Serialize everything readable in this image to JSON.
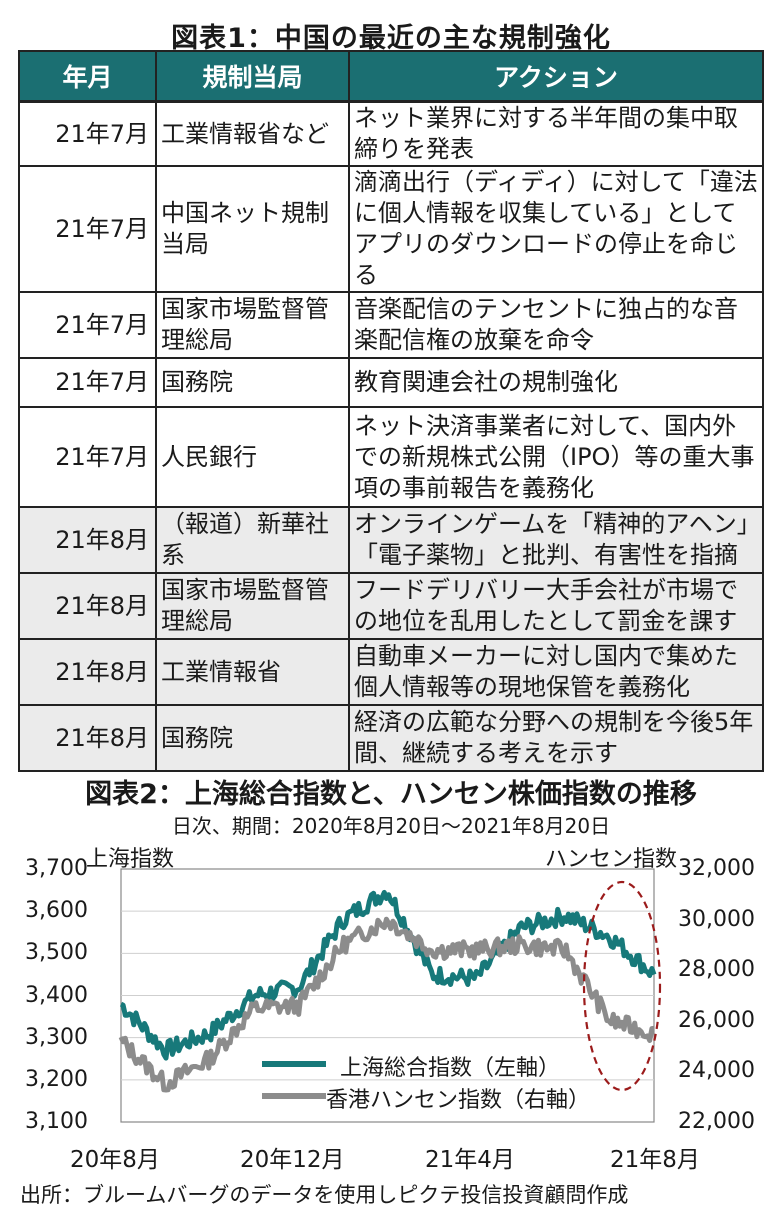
{
  "table": {
    "title": "図表1：中国の最近の主な規制強化",
    "headers": [
      "年月",
      "規制当局",
      "アクション"
    ],
    "rows": [
      {
        "date": "21年7月",
        "authority": "工業情報省など",
        "action": "ネット業界に対する半年間の集中取締りを発表"
      },
      {
        "date": "21年7月",
        "authority": "中国ネット規制当局",
        "action": "滴滴出行（ディディ）に対して「違法に個人情報を収集している」としてアプリのダウンロードの停止を命じる"
      },
      {
        "date": "21年7月",
        "authority": "国家市場監督管理総局",
        "action": "音楽配信のテンセントに独占的な音楽配信権の放棄を命令"
      },
      {
        "date": "21年7月",
        "authority": "国務院",
        "action": "教育関連会社の規制強化"
      },
      {
        "date": "21年7月",
        "authority": "人民銀行",
        "action": "ネット決済事業者に対して、国内外での新規株式公開（IPO）等の重大事項の事前報告を義務化"
      },
      {
        "date": "21年8月",
        "authority": "（報道）新華社系",
        "action": "オンラインゲームを「精神的アヘン」「電子薬物」と批判、有害性を指摘"
      },
      {
        "date": "21年8月",
        "authority": "国家市場監督管理総局",
        "action": "フードデリバリー大手会社が市場での地位を乱用したとして罰金を課す"
      },
      {
        "date": "21年8月",
        "authority": "工業情報省",
        "action": "自動車メーカーに対し国内で集めた個人情報等の現地保管を義務化"
      },
      {
        "date": "21年8月",
        "authority": "国務院",
        "action": "経済の広範な分野への規制を今後5年間、継続する考えを示す"
      }
    ]
  },
  "chart_section": {
    "title": "図表2：上海総合指数と、ハンセン株価指数の推移",
    "subtitle": "日次、期間：2020年8月20日～2021年8月20日",
    "source": "出所：ブルームバーグのデータを使用しピクテ投信投資顧問作成"
  },
  "chart_data": {
    "type": "line",
    "left_axis": {
      "label": "上海指数",
      "range": [
        3100,
        3700
      ],
      "ticks": [
        "3,700",
        "3,600",
        "3,500",
        "3,400",
        "3,300",
        "3,200",
        "3,100"
      ]
    },
    "right_axis": {
      "label": "ハンセン指数",
      "range": [
        22000,
        32000
      ],
      "ticks": [
        "32,000",
        "30,000",
        "28,000",
        "26,000",
        "24,000",
        "22,000"
      ]
    },
    "x_ticks": [
      "20年8月",
      "20年12月",
      "21年4月",
      "21年8月"
    ],
    "grid": true,
    "legend_position": "bottom-center",
    "series": [
      {
        "name": "上海総合指数（左軸）",
        "axis": "left",
        "color": "#17797a",
        "x": [
          "2020-08",
          "2020-09",
          "2020-10",
          "2020-11",
          "2020-12",
          "2021-01",
          "2021-02",
          "2021-03",
          "2021-04",
          "2021-05",
          "2021-06",
          "2021-07",
          "2021-08"
        ],
        "values": [
          3380,
          3270,
          3310,
          3400,
          3420,
          3580,
          3650,
          3450,
          3440,
          3560,
          3590,
          3540,
          3450
        ]
      },
      {
        "name": "香港ハンセン指数（右軸）",
        "axis": "right",
        "color": "#8c8c8c",
        "x": [
          "2020-08",
          "2020-09",
          "2020-10",
          "2020-11",
          "2020-12",
          "2021-01",
          "2021-02",
          "2021-03",
          "2021-04",
          "2021-05",
          "2021-06",
          "2021-07",
          "2021-08"
        ],
        "values": [
          25200,
          23500,
          24500,
          26500,
          26600,
          29000,
          30000,
          28800,
          28800,
          29000,
          28800,
          26000,
          25500
        ]
      }
    ],
    "highlight": {
      "shape": "dashed-ellipse",
      "color": "#9b1b1b"
    }
  }
}
